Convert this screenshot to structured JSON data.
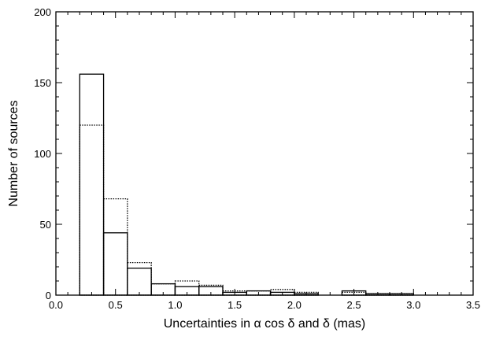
{
  "chart_data": {
    "type": "bar",
    "title": "",
    "xlabel": "Uncertainties in α cos δ and δ (mas)",
    "ylabel": "Number of sources",
    "xlim": [
      0.0,
      3.5
    ],
    "ylim": [
      0,
      200
    ],
    "xticks": [
      "0.0",
      "0.5",
      "1.0",
      "1.5",
      "2.0",
      "2.5",
      "3.0",
      "3.5"
    ],
    "yticks": [
      "0",
      "50",
      "100",
      "150",
      "200"
    ],
    "bin_edges": [
      0.2,
      0.4,
      0.6,
      0.8,
      1.0,
      1.2,
      1.4,
      1.6,
      1.8,
      2.0,
      2.2,
      2.4,
      2.6,
      2.8,
      3.0
    ],
    "grid": false,
    "series": [
      {
        "style": "solid",
        "values": [
          156,
          44,
          19,
          8,
          6,
          6,
          2,
          3,
          2,
          1,
          0,
          3,
          1,
          1
        ]
      },
      {
        "style": "dotted",
        "values": [
          120,
          68,
          23,
          8,
          10,
          7,
          3,
          3,
          4,
          2,
          0,
          2,
          1,
          1
        ]
      }
    ]
  }
}
